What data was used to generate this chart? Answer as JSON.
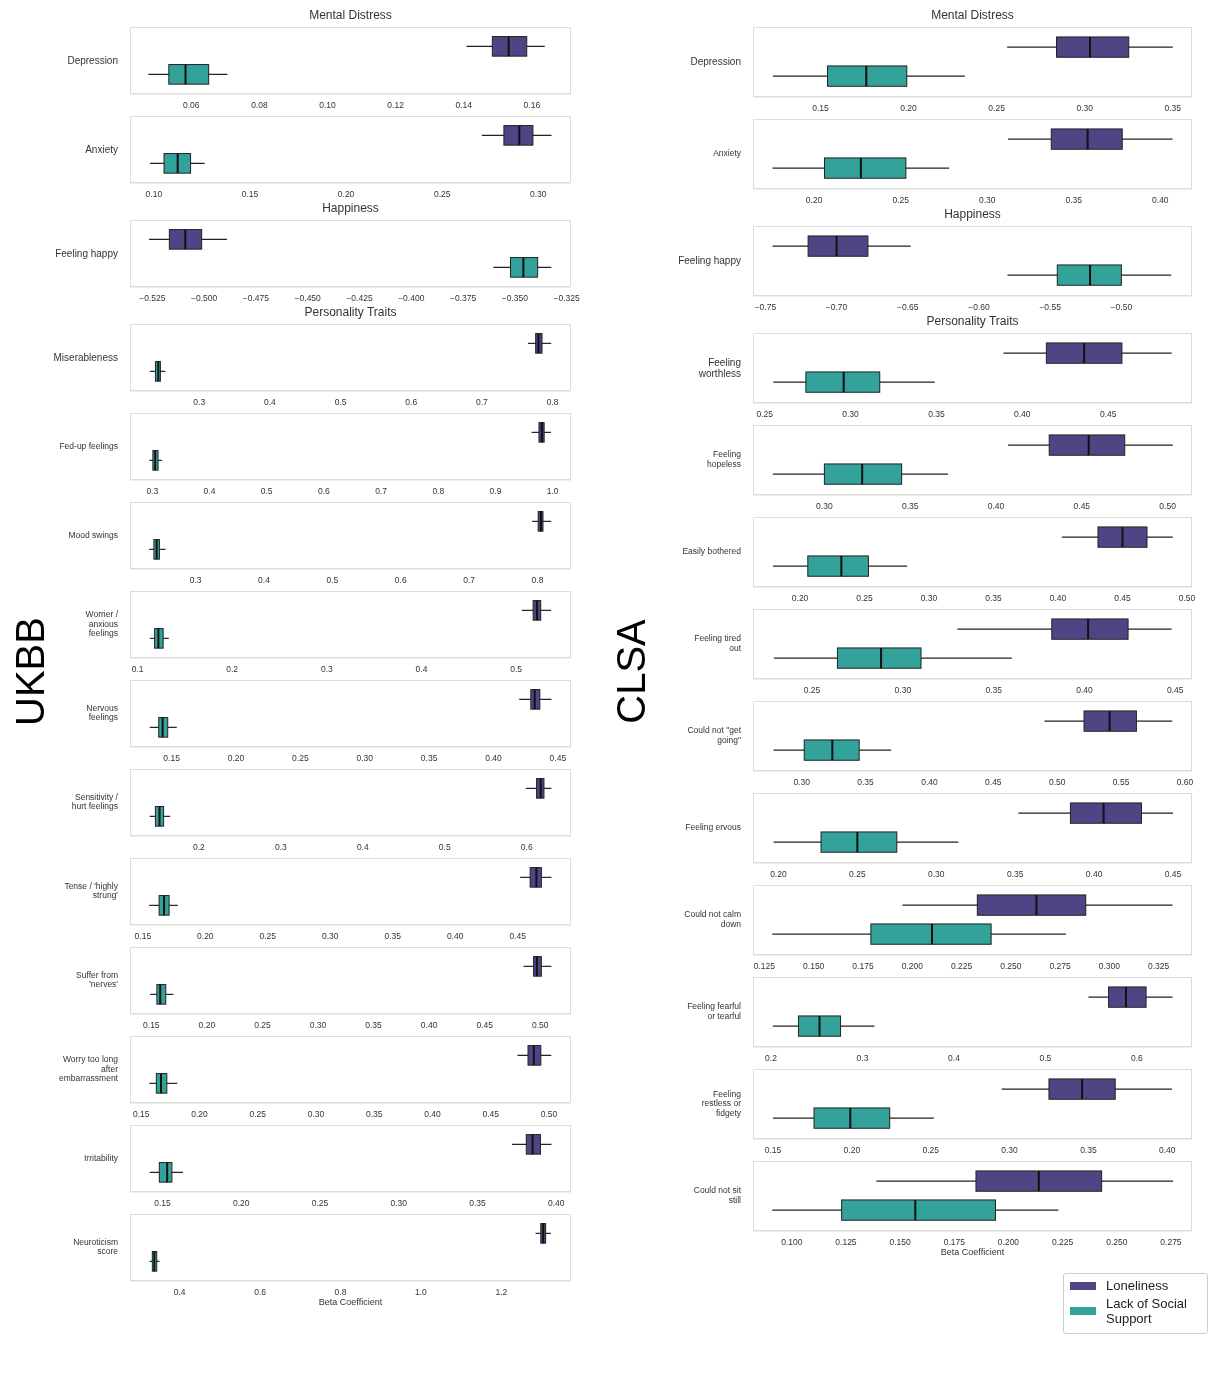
{
  "chart_data": [
    {
      "type": "box",
      "orientation": "horizontal",
      "title": "Mental Distress",
      "annotations": [
        "UKBB"
      ],
      "categories": [
        "Depression"
      ],
      "xlim": [
        0.042,
        0.1715
      ],
      "xticks": [
        0.06,
        0.08,
        {
          "value": 0.1,
          "label": "0.10"
        },
        0.12,
        0.14,
        0.16
      ],
      "series": [
        {
          "color": "#4f4585",
          "boxes": [
            {
              "low": 0.1408,
              "q1": 0.1484,
              "median": 0.1532,
              "q3": 0.1585,
              "high": 0.1638
            }
          ]
        },
        {
          "color": "#33a29a",
          "boxes": [
            {
              "low": 0.0474,
              "q1": 0.0534,
              "median": 0.0583,
              "q3": 0.0651,
              "high": 0.0706
            }
          ]
        }
      ]
    },
    {
      "type": "box",
      "orientation": "horizontal",
      "categories": [
        "Anxiety"
      ],
      "xlim": [
        0.0876,
        0.317
      ],
      "xticks": [
        {
          "value": 0.1,
          "label": "0.10"
        },
        0.15,
        {
          "value": 0.2,
          "label": "0.20"
        },
        0.25,
        {
          "value": 0.3,
          "label": "0.30"
        }
      ],
      "series": [
        {
          "color": "#4f4585",
          "boxes": [
            {
              "low": 0.2706,
              "q1": 0.2821,
              "median": 0.2901,
              "q3": 0.2972,
              "high": 0.3069
            }
          ]
        },
        {
          "color": "#33a29a",
          "boxes": [
            {
              "low": 0.098,
              "q1": 0.1053,
              "median": 0.1124,
              "q3": 0.1191,
              "high": 0.1264
            }
          ]
        }
      ]
    },
    {
      "type": "box",
      "orientation": "horizontal",
      "title": "Happiness",
      "categories": [
        "Feeling happy"
      ],
      "xlim": [
        -0.5358,
        -0.3229
      ],
      "xticks": [
        {
          "value": -0.525,
          "label": "−0.525"
        },
        {
          "value": -0.5,
          "label": "−0.500"
        },
        {
          "value": -0.475,
          "label": "−0.475"
        },
        {
          "value": -0.45,
          "label": "−0.450"
        },
        {
          "value": -0.425,
          "label": "−0.425"
        },
        {
          "value": -0.4,
          "label": "−0.400"
        },
        {
          "value": -0.375,
          "label": "−0.375"
        },
        {
          "value": -0.35,
          "label": "−0.350"
        },
        {
          "value": -0.325,
          "label": "−0.325"
        }
      ],
      "series": [
        {
          "color": "#4f4585",
          "boxes": [
            {
              "low": -0.5266,
              "q1": -0.5168,
              "median": -0.5091,
              "q3": -0.5012,
              "high": -0.489
            }
          ]
        },
        {
          "color": "#33a29a",
          "boxes": [
            {
              "low": -0.3604,
              "q1": -0.3521,
              "median": -0.3459,
              "q3": -0.339,
              "high": -0.3324
            }
          ]
        }
      ]
    },
    {
      "type": "box",
      "orientation": "horizontal",
      "title": "Personality Traits",
      "categories": [
        "Miserableness"
      ],
      "xlim": [
        0.202,
        0.826
      ],
      "xticks": [
        0.3,
        0.4,
        0.5,
        0.6,
        0.7,
        0.8
      ],
      "series": [
        {
          "color": "#4f4585",
          "boxes": [
            {
              "low": 0.765,
              "q1": 0.776,
              "median": 0.78,
              "q3": 0.785,
              "high": 0.798
            }
          ]
        },
        {
          "color": "#33a29a",
          "boxes": [
            {
              "low": 0.23,
              "q1": 0.238,
              "median": 0.242,
              "q3": 0.245,
              "high": 0.252
            }
          ]
        }
      ]
    },
    {
      "type": "box",
      "orientation": "horizontal",
      "categories": [
        "Fed-up feelings"
      ],
      "xlim": [
        0.261,
        1.032
      ],
      "xticks": [
        0.3,
        0.4,
        0.5,
        0.6,
        0.7,
        0.8,
        0.9,
        {
          "value": 1,
          "label": "1.0"
        }
      ],
      "series": [
        {
          "color": "#4f4585",
          "boxes": [
            {
              "low": 0.963,
              "q1": 0.976,
              "median": 0.981,
              "q3": 0.985,
              "high": 0.997
            }
          ]
        },
        {
          "color": "#33a29a",
          "boxes": [
            {
              "low": 0.295,
              "q1": 0.301,
              "median": 0.305,
              "q3": 0.31,
              "high": 0.317
            }
          ]
        }
      ]
    },
    {
      "type": "box",
      "orientation": "horizontal",
      "categories": [
        "Mood swings"
      ],
      "xlim": [
        0.204,
        0.849
      ],
      "xticks": [
        0.3,
        0.4,
        0.5,
        0.6,
        0.7,
        0.8
      ],
      "series": [
        {
          "color": "#4f4585",
          "boxes": [
            {
              "low": 0.792,
              "q1": 0.801,
              "median": 0.805,
              "q3": 0.808,
              "high": 0.82
            }
          ]
        },
        {
          "color": "#33a29a",
          "boxes": [
            {
              "low": 0.232,
              "q1": 0.239,
              "median": 0.243,
              "q3": 0.247,
              "high": 0.256
            }
          ]
        }
      ]
    },
    {
      "type": "box",
      "orientation": "horizontal",
      "categories": [
        "Worrier / anxious feelings"
      ],
      "xlim": [
        0.092,
        0.558
      ],
      "xticks": [
        0.1,
        0.2,
        0.3,
        0.4,
        0.5
      ],
      "series": [
        {
          "color": "#4f4585",
          "boxes": [
            {
              "low": 0.506,
              "q1": 0.518,
              "median": 0.522,
              "q3": 0.526,
              "high": 0.537
            }
          ]
        },
        {
          "color": "#33a29a",
          "boxes": [
            {
              "low": 0.113,
              "q1": 0.118,
              "median": 0.122,
              "q3": 0.127,
              "high": 0.133
            }
          ]
        }
      ]
    },
    {
      "type": "box",
      "orientation": "horizontal",
      "categories": [
        "Nervous feelings"
      ],
      "xlim": [
        0.1177,
        0.4602
      ],
      "xticks": [
        0.15,
        {
          "value": 0.2,
          "label": "0.20"
        },
        0.25,
        {
          "value": 0.3,
          "label": "0.30"
        },
        0.35,
        {
          "value": 0.4,
          "label": "0.40"
        },
        0.45
      ],
      "series": [
        {
          "color": "#4f4585",
          "boxes": [
            {
              "low": 0.42,
              "q1": 0.429,
              "median": 0.432,
              "q3": 0.436,
              "high": 0.445
            }
          ]
        },
        {
          "color": "#33a29a",
          "boxes": [
            {
              "low": 0.133,
              "q1": 0.14,
              "median": 0.143,
              "q3": 0.147,
              "high": 0.154
            }
          ]
        }
      ]
    },
    {
      "type": "box",
      "orientation": "horizontal",
      "categories": [
        "Sensitivity / hurt feelings"
      ],
      "xlim": [
        0.116,
        0.654
      ],
      "xticks": [
        0.2,
        0.3,
        0.4,
        0.5,
        0.6
      ],
      "series": [
        {
          "color": "#4f4585",
          "boxes": [
            {
              "low": 0.599,
              "q1": 0.612,
              "median": 0.617,
              "q3": 0.621,
              "high": 0.63
            }
          ]
        },
        {
          "color": "#33a29a",
          "boxes": [
            {
              "low": 0.14,
              "q1": 0.147,
              "median": 0.152,
              "q3": 0.157,
              "high": 0.165
            }
          ]
        }
      ]
    },
    {
      "type": "box",
      "orientation": "horizontal",
      "categories": [
        "Tense / 'highly strung'"
      ],
      "xlim": [
        0.1397,
        0.4927
      ],
      "xticks": [
        0.15,
        {
          "value": 0.2,
          "label": "0.20"
        },
        0.25,
        {
          "value": 0.3,
          "label": "0.30"
        },
        0.35,
        {
          "value": 0.4,
          "label": "0.40"
        },
        0.45
      ],
      "series": [
        {
          "color": "#4f4585",
          "boxes": [
            {
              "low": 0.452,
              "q1": 0.46,
              "median": 0.465,
              "q3": 0.469,
              "high": 0.477
            }
          ]
        },
        {
          "color": "#33a29a",
          "boxes": [
            {
              "low": 0.155,
              "q1": 0.163,
              "median": 0.167,
              "q3": 0.171,
              "high": 0.178
            }
          ]
        }
      ]
    },
    {
      "type": "box",
      "orientation": "horizontal",
      "categories": [
        "Suffer from 'nerves'"
      ],
      "xlim": [
        0.1308,
        0.5277
      ],
      "xticks": [
        0.15,
        {
          "value": 0.2,
          "label": "0.20"
        },
        0.25,
        {
          "value": 0.3,
          "label": "0.30"
        },
        0.35,
        {
          "value": 0.4,
          "label": "0.40"
        },
        0.45,
        {
          "value": 0.5,
          "label": "0.50"
        }
      ],
      "series": [
        {
          "color": "#4f4585",
          "boxes": [
            {
              "low": 0.485,
              "q1": 0.494,
              "median": 0.497,
              "q3": 0.501,
              "high": 0.51
            }
          ]
        },
        {
          "color": "#33a29a",
          "boxes": [
            {
              "low": 0.149,
              "q1": 0.155,
              "median": 0.158,
              "q3": 0.163,
              "high": 0.17
            }
          ]
        }
      ]
    },
    {
      "type": "box",
      "orientation": "horizontal",
      "categories": [
        "Worry too long after embarrassment"
      ],
      "xlim": [
        0.1404,
        0.5189
      ],
      "xticks": [
        0.15,
        {
          "value": 0.2,
          "label": "0.20"
        },
        0.25,
        {
          "value": 0.3,
          "label": "0.30"
        },
        0.35,
        {
          "value": 0.4,
          "label": "0.40"
        },
        0.45,
        {
          "value": 0.5,
          "label": "0.50"
        }
      ],
      "series": [
        {
          "color": "#4f4585",
          "boxes": [
            {
              "low": 0.473,
              "q1": 0.482,
              "median": 0.487,
              "q3": 0.493,
              "high": 0.502
            }
          ]
        },
        {
          "color": "#33a29a",
          "boxes": [
            {
              "low": 0.157,
              "q1": 0.163,
              "median": 0.167,
              "q3": 0.172,
              "high": 0.181
            }
          ]
        }
      ]
    },
    {
      "type": "box",
      "orientation": "horizontal",
      "categories": [
        "Irritability"
      ],
      "xlim": [
        0.1294,
        0.4094
      ],
      "xticks": [
        0.15,
        {
          "value": 0.2,
          "label": "0.20"
        },
        0.25,
        {
          "value": 0.3,
          "label": "0.30"
        },
        0.35,
        {
          "value": 0.4,
          "label": "0.40"
        }
      ],
      "series": [
        {
          "color": "#4f4585",
          "boxes": [
            {
              "low": 0.372,
              "q1": 0.381,
              "median": 0.385,
              "q3": 0.39,
              "high": 0.397
            }
          ]
        },
        {
          "color": "#33a29a",
          "boxes": [
            {
              "low": 0.142,
              "q1": 0.148,
              "median": 0.153,
              "q3": 0.156,
              "high": 0.163
            }
          ]
        }
      ]
    },
    {
      "type": "box",
      "orientation": "horizontal",
      "xlabel": "Beta Coefficient",
      "categories": [
        "Neuroticism score"
      ],
      "xlim": [
        0.2765,
        1.3731
      ],
      "xticks": [
        0.4,
        0.6,
        0.8,
        {
          "value": 1,
          "label": "1.0"
        },
        1.2
      ],
      "series": [
        {
          "color": "#4f4585",
          "boxes": [
            {
              "low": 1.285,
              "q1": 1.298,
              "median": 1.304,
              "q3": 1.31,
              "high": 1.323
            }
          ]
        },
        {
          "color": "#33a29a",
          "boxes": [
            {
              "low": 0.325,
              "q1": 0.332,
              "median": 0.337,
              "q3": 0.343,
              "high": 0.35
            }
          ]
        }
      ]
    },
    {
      "type": "box",
      "orientation": "horizontal",
      "title": "Mental Distress",
      "annotations": [
        "CLSA"
      ],
      "categories": [
        "Depression"
      ],
      "xlim": [
        0.1117,
        0.3609
      ],
      "xticks": [
        0.15,
        {
          "value": 0.2,
          "label": "0.20"
        },
        0.25,
        {
          "value": 0.3,
          "label": "0.30"
        },
        0.35
      ],
      "series": [
        {
          "color": "#4f4585",
          "boxes": [
            {
              "low": 0.256,
              "q1": 0.284,
              "median": 0.303,
              "q3": 0.325,
              "high": 0.35
            }
          ]
        },
        {
          "color": "#33a29a",
          "boxes": [
            {
              "low": 0.123,
              "q1": 0.154,
              "median": 0.176,
              "q3": 0.199,
              "high": 0.232
            }
          ]
        }
      ]
    },
    {
      "type": "box",
      "orientation": "horizontal",
      "categories": [
        "Anxiety"
      ],
      "xlim": [
        0.1647,
        0.4183
      ],
      "xticks": [
        {
          "value": 0.2,
          "label": "0.20"
        },
        0.25,
        {
          "value": 0.3,
          "label": "0.30"
        },
        0.35,
        {
          "value": 0.4,
          "label": "0.40"
        }
      ],
      "series": [
        {
          "color": "#4f4585",
          "boxes": [
            {
              "low": 0.312,
              "q1": 0.337,
              "median": 0.358,
              "q3": 0.378,
              "high": 0.407
            }
          ]
        },
        {
          "color": "#33a29a",
          "boxes": [
            {
              "low": 0.176,
              "q1": 0.206,
              "median": 0.227,
              "q3": 0.253,
              "high": 0.278
            }
          ]
        }
      ]
    },
    {
      "type": "box",
      "orientation": "horizontal",
      "title": "Happiness",
      "categories": [
        "Feeling happy"
      ],
      "xlim": [
        -0.7587,
        -0.4504
      ],
      "xticks": [
        {
          "value": -0.75,
          "label": "−0.75"
        },
        {
          "value": -0.7,
          "label": "−0.70"
        },
        {
          "value": -0.65,
          "label": "−0.65"
        },
        {
          "value": -0.6,
          "label": "−0.60"
        },
        {
          "value": -0.55,
          "label": "−0.55"
        },
        {
          "value": -0.5,
          "label": "−0.50"
        }
      ],
      "series": [
        {
          "color": "#4f4585",
          "boxes": [
            {
              "low": -0.745,
              "q1": -0.72,
              "median": -0.7,
              "q3": -0.678,
              "high": -0.648
            }
          ]
        },
        {
          "color": "#33a29a",
          "boxes": [
            {
              "low": -0.58,
              "q1": -0.545,
              "median": -0.522,
              "q3": -0.5,
              "high": -0.465
            }
          ]
        }
      ]
    },
    {
      "type": "box",
      "orientation": "horizontal",
      "title": "Personality Traits",
      "categories": [
        "Feeling worthless"
      ],
      "xlim": [
        0.2432,
        0.4988
      ],
      "xticks": [
        0.25,
        {
          "value": 0.3,
          "label": "0.30"
        },
        0.35,
        {
          "value": 0.4,
          "label": "0.40"
        },
        0.45
      ],
      "series": [
        {
          "color": "#4f4585",
          "boxes": [
            {
              "low": 0.389,
              "q1": 0.414,
              "median": 0.436,
              "q3": 0.458,
              "high": 0.487
            }
          ]
        },
        {
          "color": "#33a29a",
          "boxes": [
            {
              "low": 0.255,
              "q1": 0.274,
              "median": 0.296,
              "q3": 0.317,
              "high": 0.349
            }
          ]
        }
      ]
    },
    {
      "type": "box",
      "orientation": "horizontal",
      "categories": [
        "Feeling hopeless"
      ],
      "xlim": [
        0.2584,
        0.5142
      ],
      "xticks": [
        {
          "value": 0.3,
          "label": "0.30"
        },
        0.35,
        {
          "value": 0.4,
          "label": "0.40"
        },
        0.45,
        {
          "value": 0.5,
          "label": "0.50"
        }
      ],
      "series": [
        {
          "color": "#4f4585",
          "boxes": [
            {
              "low": 0.407,
              "q1": 0.431,
              "median": 0.454,
              "q3": 0.475,
              "high": 0.503
            }
          ]
        },
        {
          "color": "#33a29a",
          "boxes": [
            {
              "low": 0.27,
              "q1": 0.3,
              "median": 0.322,
              "q3": 0.345,
              "high": 0.372
            }
          ]
        }
      ]
    },
    {
      "type": "box",
      "orientation": "horizontal",
      "categories": [
        "Easily bothered"
      ],
      "xlim": [
        0.1635,
        0.5039
      ],
      "xticks": [
        {
          "value": 0.2,
          "label": "0.20"
        },
        0.25,
        {
          "value": 0.3,
          "label": "0.30"
        },
        0.35,
        {
          "value": 0.4,
          "label": "0.40"
        },
        0.45,
        {
          "value": 0.5,
          "label": "0.50"
        }
      ],
      "series": [
        {
          "color": "#4f4585",
          "boxes": [
            {
              "low": 0.403,
              "q1": 0.431,
              "median": 0.45,
              "q3": 0.469,
              "high": 0.489
            }
          ]
        },
        {
          "color": "#33a29a",
          "boxes": [
            {
              "low": 0.179,
              "q1": 0.206,
              "median": 0.232,
              "q3": 0.253,
              "high": 0.283
            }
          ]
        }
      ]
    },
    {
      "type": "box",
      "orientation": "horizontal",
      "categories": [
        "Feeling tired out"
      ],
      "xlim": [
        0.2175,
        0.4592
      ],
      "xticks": [
        0.25,
        {
          "value": 0.3,
          "label": "0.30"
        },
        0.35,
        {
          "value": 0.4,
          "label": "0.40"
        },
        0.45
      ],
      "series": [
        {
          "color": "#4f4585",
          "boxes": [
            {
              "low": 0.33,
              "q1": 0.382,
              "median": 0.402,
              "q3": 0.424,
              "high": 0.448
            }
          ]
        },
        {
          "color": "#33a29a",
          "boxes": [
            {
              "low": 0.229,
              "q1": 0.264,
              "median": 0.288,
              "q3": 0.31,
              "high": 0.36
            }
          ]
        }
      ]
    },
    {
      "type": "box",
      "orientation": "horizontal",
      "categories": [
        "Could not \"get going\""
      ],
      "xlim": [
        0.2619,
        0.6055
      ],
      "xticks": [
        {
          "value": 0.3,
          "label": "0.30"
        },
        0.35,
        {
          "value": 0.4,
          "label": "0.40"
        },
        0.45,
        {
          "value": 0.5,
          "label": "0.50"
        },
        0.55,
        {
          "value": 0.6,
          "label": "0.60"
        }
      ],
      "series": [
        {
          "color": "#4f4585",
          "boxes": [
            {
              "low": 0.49,
              "q1": 0.521,
              "median": 0.541,
              "q3": 0.562,
              "high": 0.59
            }
          ]
        },
        {
          "color": "#33a29a",
          "boxes": [
            {
              "low": 0.278,
              "q1": 0.302,
              "median": 0.324,
              "q3": 0.345,
              "high": 0.37
            }
          ]
        }
      ]
    },
    {
      "type": "box",
      "orientation": "horizontal",
      "categories": [
        "Feeling ervous"
      ],
      "xlim": [
        0.1839,
        0.462
      ],
      "xticks": [
        {
          "value": 0.2,
          "label": "0.20"
        },
        0.25,
        {
          "value": 0.3,
          "label": "0.30"
        },
        0.35,
        {
          "value": 0.4,
          "label": "0.40"
        },
        0.45
      ],
      "series": [
        {
          "color": "#4f4585",
          "boxes": [
            {
              "low": 0.352,
              "q1": 0.385,
              "median": 0.406,
              "q3": 0.43,
              "high": 0.45
            }
          ]
        },
        {
          "color": "#33a29a",
          "boxes": [
            {
              "low": 0.197,
              "q1": 0.227,
              "median": 0.25,
              "q3": 0.275,
              "high": 0.314
            }
          ]
        }
      ]
    },
    {
      "type": "box",
      "orientation": "horizontal",
      "categories": [
        "Could not calm down"
      ],
      "xlim": [
        0.1192,
        0.3419
      ],
      "xticks": [
        0.125,
        {
          "value": 0.15,
          "label": "0.150"
        },
        0.175,
        {
          "value": 0.2,
          "label": "0.200"
        },
        0.225,
        {
          "value": 0.25,
          "label": "0.250"
        },
        0.275,
        {
          "value": 0.3,
          "label": "0.300"
        },
        0.325
      ],
      "series": [
        {
          "color": "#4f4585",
          "boxes": [
            {
              "low": 0.195,
              "q1": 0.233,
              "median": 0.263,
              "q3": 0.288,
              "high": 0.332
            }
          ]
        },
        {
          "color": "#33a29a",
          "boxes": [
            {
              "low": 0.129,
              "q1": 0.179,
              "median": 0.21,
              "q3": 0.24,
              "high": 0.278
            }
          ]
        }
      ]
    },
    {
      "type": "box",
      "orientation": "horizontal",
      "categories": [
        "Feeling fearful or tearful"
      ],
      "xlim": [
        0.1803,
        0.6602
      ],
      "xticks": [
        0.2,
        0.3,
        0.4,
        0.5,
        0.6
      ],
      "series": [
        {
          "color": "#4f4585",
          "boxes": [
            {
              "low": 0.547,
              "q1": 0.569,
              "median": 0.588,
              "q3": 0.61,
              "high": 0.639
            }
          ]
        },
        {
          "color": "#33a29a",
          "boxes": [
            {
              "low": 0.202,
              "q1": 0.23,
              "median": 0.253,
              "q3": 0.276,
              "high": 0.313
            }
          ]
        }
      ]
    },
    {
      "type": "box",
      "orientation": "horizontal",
      "categories": [
        "Feeling restless or fidgety"
      ],
      "xlim": [
        0.1373,
        0.4157
      ],
      "xticks": [
        0.15,
        {
          "value": 0.2,
          "label": "0.20"
        },
        0.25,
        {
          "value": 0.3,
          "label": "0.30"
        },
        0.35,
        {
          "value": 0.4,
          "label": "0.40"
        }
      ],
      "series": [
        {
          "color": "#4f4585",
          "boxes": [
            {
              "low": 0.295,
              "q1": 0.325,
              "median": 0.346,
              "q3": 0.367,
              "high": 0.403
            }
          ]
        },
        {
          "color": "#33a29a",
          "boxes": [
            {
              "low": 0.15,
              "q1": 0.176,
              "median": 0.199,
              "q3": 0.224,
              "high": 0.252
            }
          ]
        }
      ]
    },
    {
      "type": "box",
      "orientation": "horizontal",
      "xlabel": "Beta Coefficient",
      "legend": "bottom right",
      "categories": [
        "Could not sit still"
      ],
      "xlim": [
        0.0821,
        0.2847
      ],
      "xticks": [
        {
          "value": 0.1,
          "label": "0.100"
        },
        0.125,
        {
          "value": 0.15,
          "label": "0.150"
        },
        0.175,
        {
          "value": 0.2,
          "label": "0.200"
        },
        0.225,
        {
          "value": 0.25,
          "label": "0.250"
        },
        0.275
      ],
      "series": [
        {
          "name": "Loneliness",
          "color": "#4f4585",
          "boxes": [
            {
              "low": 0.139,
              "q1": 0.185,
              "median": 0.214,
              "q3": 0.243,
              "high": 0.276
            }
          ]
        },
        {
          "name": "Lack of Social Support",
          "color": "#33a29a",
          "boxes": [
            {
              "low": 0.091,
              "q1": 0.123,
              "median": 0.157,
              "q3": 0.194,
              "high": 0.223
            }
          ]
        }
      ]
    }
  ]
}
